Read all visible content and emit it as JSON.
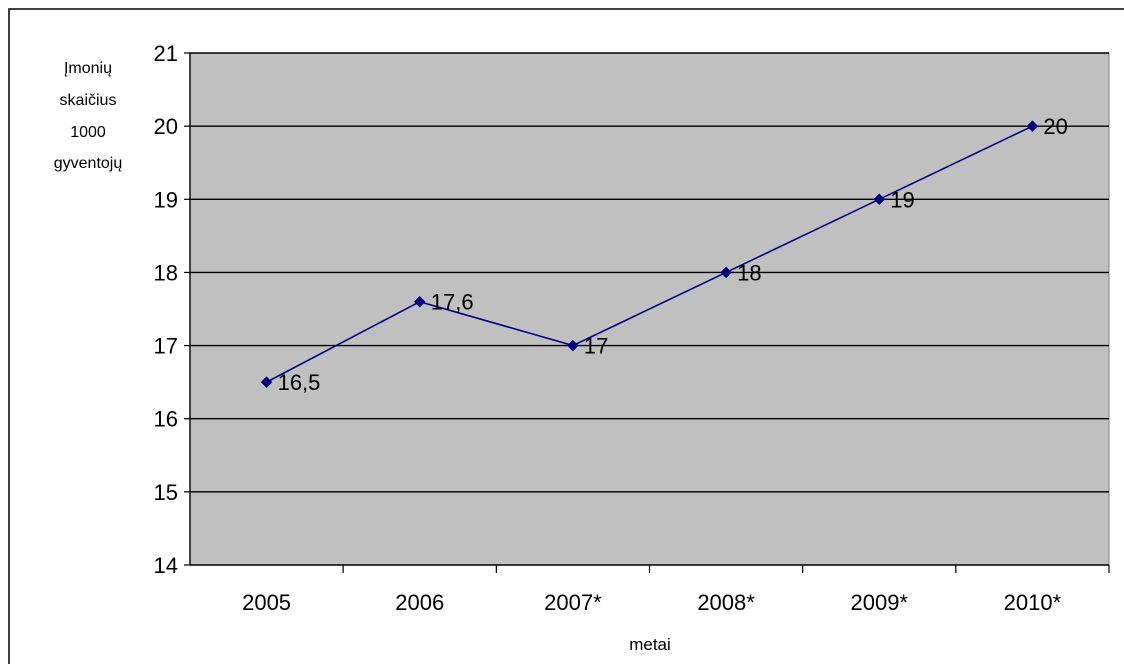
{
  "chart_data": {
    "type": "line",
    "title": "",
    "xlabel": "metai",
    "ylabel_lines": [
      "Įmonių",
      "skaičius",
      "1000",
      "gyventojų"
    ],
    "categories": [
      "2005",
      "2006",
      "2007*",
      "2008*",
      "2009*",
      "2010*"
    ],
    "series": [
      {
        "values": [
          16.5,
          17.6,
          17,
          18,
          19,
          20
        ],
        "data_labels": [
          "16,5",
          "17,6",
          "17",
          "18",
          "19",
          "20"
        ],
        "color": "#000080",
        "marker": "diamond"
      }
    ],
    "ylim": [
      14,
      21
    ],
    "yticks": [
      14,
      15,
      16,
      17,
      18,
      19,
      20,
      21
    ],
    "grid": "horizontal",
    "legend": "none",
    "plot_background": "#c0c0c0"
  }
}
